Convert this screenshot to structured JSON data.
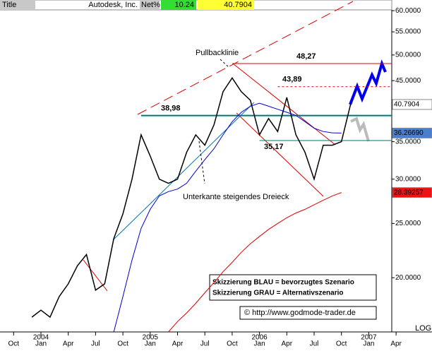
{
  "header": {
    "title": "Title",
    "name": "Autodesk, Inc.",
    "net_label": "Net%",
    "net_value": "10.24",
    "last": "40.7904"
  },
  "chart_data": {
    "type": "line",
    "log_scale": true,
    "x": [
      "2003-12",
      "2004-01",
      "2004-02",
      "2004-03",
      "2004-04",
      "2004-05",
      "2004-06",
      "2004-07",
      "2004-08",
      "2004-09",
      "2004-10",
      "2004-11",
      "2004-12",
      "2005-01",
      "2005-02",
      "2005-03",
      "2005-04",
      "2005-05",
      "2005-06",
      "2005-07",
      "2005-08",
      "2005-09",
      "2005-10",
      "2005-11",
      "2005-12",
      "2006-01",
      "2006-02",
      "2006-03",
      "2006-04",
      "2006-05",
      "2006-06",
      "2006-07",
      "2006-08",
      "2006-09",
      "2006-10",
      "2006-11"
    ],
    "series": [
      {
        "color": "#000000",
        "values": [
          17,
          17.5,
          17,
          18.5,
          19.5,
          21,
          22,
          19,
          19.5,
          23.5,
          26,
          30,
          36,
          33,
          30,
          29.5,
          30,
          33.5,
          36,
          34.5,
          37.5,
          43,
          45.5,
          43,
          41.5,
          36,
          38.5,
          36.5,
          42,
          36,
          33.5,
          30,
          34.5,
          34.5,
          35,
          40.7904
        ]
      },
      {
        "color": "#0000cc",
        "values": [
          null,
          null,
          null,
          null,
          null,
          null,
          null,
          null,
          null,
          16,
          18.5,
          21.5,
          24.5,
          26.5,
          28,
          28.5,
          28.8,
          29.5,
          31,
          32.5,
          34,
          36,
          38,
          39.5,
          40.5,
          41,
          40.5,
          40,
          39.5,
          39,
          38,
          37,
          36.5,
          36.3,
          36.2669,
          null
        ]
      },
      {
        "color": "#dd0000",
        "values": [
          null,
          null,
          null,
          null,
          null,
          null,
          null,
          null,
          null,
          null,
          null,
          null,
          null,
          null,
          null,
          16,
          16.7,
          17.3,
          18,
          18.8,
          19.6,
          20.5,
          21.3,
          22.2,
          23,
          23.7,
          24.4,
          25,
          25.6,
          26.1,
          26.5,
          27,
          27.5,
          28,
          28.39257,
          null
        ]
      }
    ],
    "ylim": [
      16,
      60.2
    ],
    "yticks": [
      {
        "value": 20,
        "label": "20.0000"
      },
      {
        "value": 25,
        "label": "25.0000"
      },
      {
        "value": 30,
        "label": "30.0000"
      },
      {
        "value": 35,
        "label": "35.0000"
      },
      {
        "value": 45,
        "label": "45.0000"
      },
      {
        "value": 50,
        "label": "50.0000"
      },
      {
        "value": 55,
        "label": "55.0000"
      },
      {
        "value": 60,
        "label": "60.0000"
      }
    ],
    "xticks": [
      {
        "value": "2003-10",
        "label": "Oct"
      },
      {
        "value": "2004-01",
        "label": "Jan"
      },
      {
        "value": "2004-04",
        "label": "Apr"
      },
      {
        "value": "2004-07",
        "label": "Jul"
      },
      {
        "value": "2004-10",
        "label": "Oct"
      },
      {
        "value": "2005-01",
        "label": "Jan"
      },
      {
        "value": "2005-04",
        "label": "Apr"
      },
      {
        "value": "2005-07",
        "label": "Jul"
      },
      {
        "value": "2005-10",
        "label": "Oct"
      },
      {
        "value": "2006-01",
        "label": "Jan"
      },
      {
        "value": "2006-04",
        "label": "Apr"
      },
      {
        "value": "2006-07",
        "label": "Jul"
      },
      {
        "value": "2006-10",
        "label": "Oct"
      },
      {
        "value": "2007-01",
        "label": "Jan"
      },
      {
        "value": "2007-04",
        "label": "Apr"
      }
    ],
    "year_labels": [
      {
        "value": "2004-01",
        "label": "2004"
      },
      {
        "value": "2005-01",
        "label": "2005"
      },
      {
        "value": "2006-01",
        "label": "2006"
      },
      {
        "value": "2007-01",
        "label": "2007"
      }
    ],
    "price_labels": [
      {
        "value": 40.7904,
        "color": "#ffffff"
      },
      {
        "value": 36.2669,
        "label": "36.26690",
        "color": "#4a7fd0"
      },
      {
        "value": 28.39257,
        "color": "#ee1111"
      }
    ],
    "levels": [
      {
        "value": 48.27,
        "label": "48,27",
        "color": "#dd0000",
        "from": "2005-10",
        "dashed": false
      },
      {
        "value": 43.89,
        "label": "43,89",
        "color": "#dd0000",
        "from": "2006-03",
        "dashed": true
      },
      {
        "value": 38.98,
        "label": "38,98",
        "color": "#007777",
        "from": "2004-12",
        "dashed": false
      },
      {
        "value": 35.17,
        "label": "35,17",
        "color": "#007777",
        "from": "2006-01",
        "dashed": false
      }
    ],
    "annotations": {
      "pullback": "Pullbacklinie",
      "triangle": "Unterkante steigendes Dreieck",
      "scale": "LOG"
    },
    "legend": {
      "blue": "Skizzierung BLAU = bevorzugtes Szenario",
      "grey": "Skizzierung GRAU = Alternativszenario",
      "source": "© http://www.godmode-trader.de"
    }
  }
}
